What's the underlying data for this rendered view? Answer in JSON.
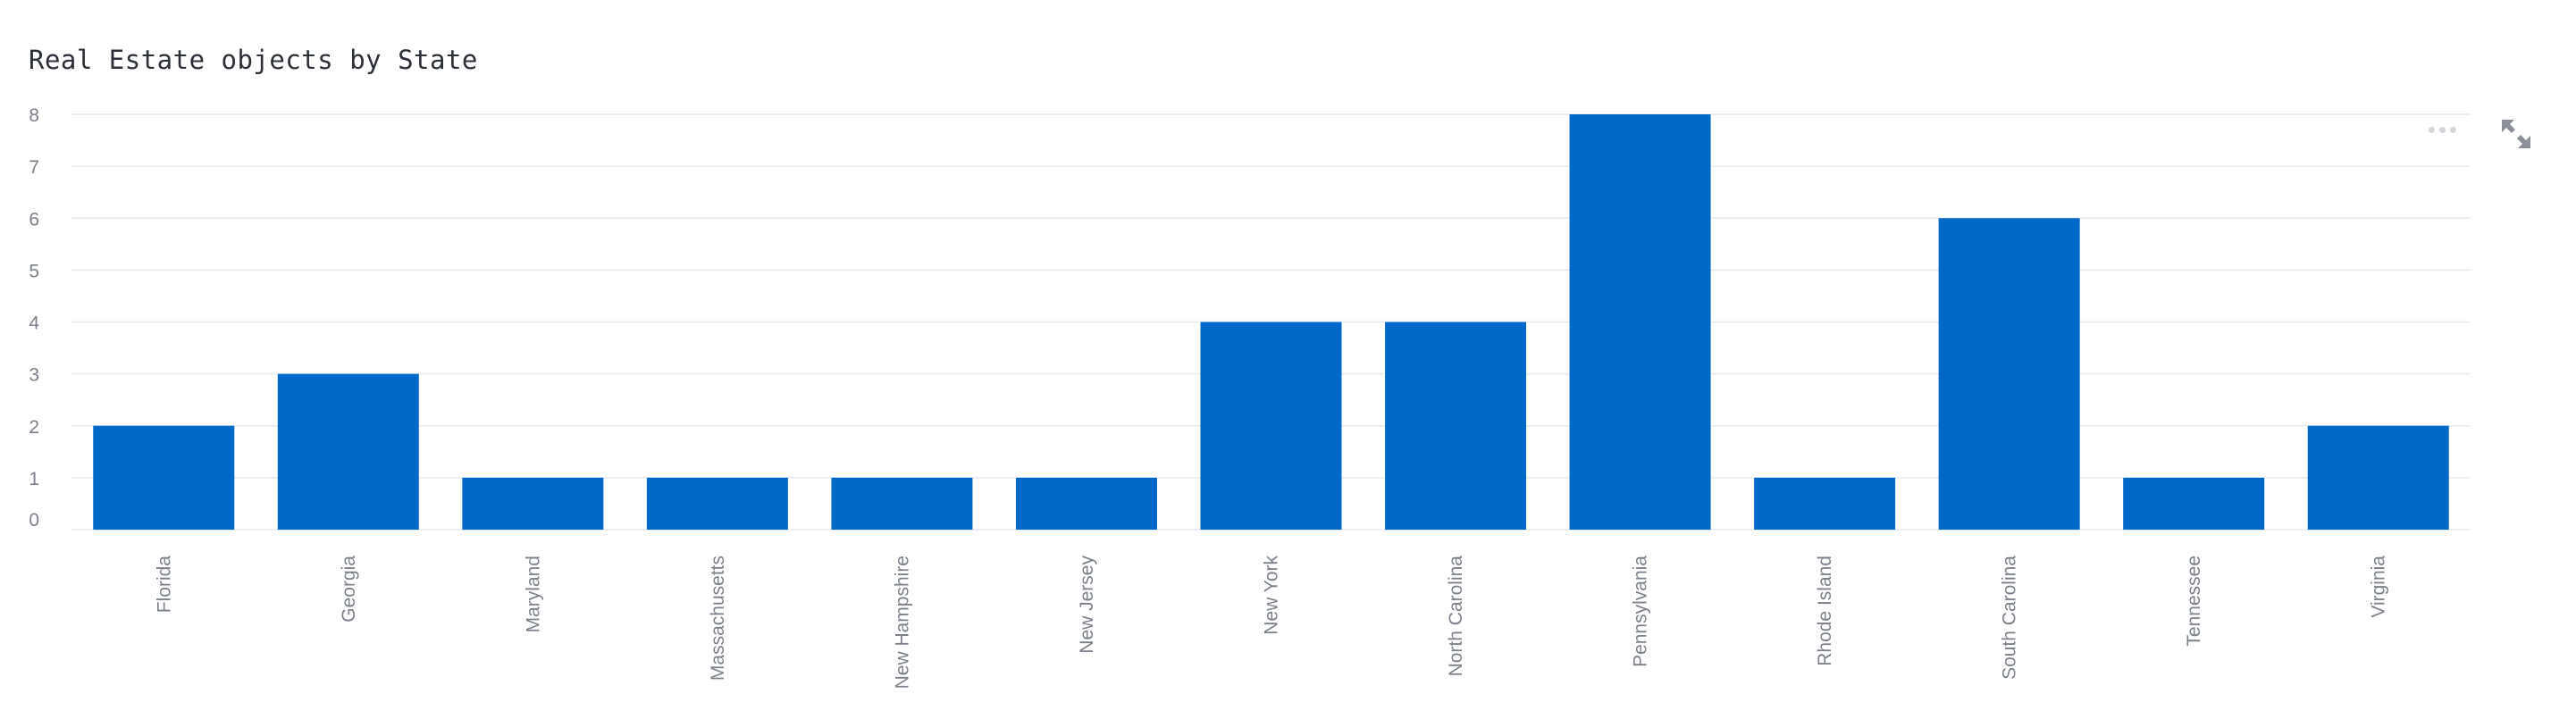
{
  "chart_data": {
    "type": "bar",
    "title": "Real Estate objects by State",
    "xlabel": "",
    "ylabel": "",
    "categories": [
      "Florida",
      "Georgia",
      "Maryland",
      "Massachusetts",
      "New Hampshire",
      "New Jersey",
      "New York",
      "North Carolina",
      "Pennsylvania",
      "Rhode Island",
      "South Carolina",
      "Tennessee",
      "Virginia"
    ],
    "values": [
      2,
      3,
      1,
      1,
      1,
      1,
      4,
      4,
      8,
      1,
      6,
      1,
      2
    ],
    "ylim": [
      0,
      8
    ],
    "yticks": [
      0,
      1,
      2,
      3,
      4,
      5,
      6,
      7,
      8
    ],
    "grid": true,
    "bar_color": "#0068c9",
    "grid_color": "#e6e9ef",
    "label_color": "#7b8089"
  },
  "toolbar": {
    "more_icon": "more-horizontal-icon",
    "expand_icon": "expand-icon"
  }
}
